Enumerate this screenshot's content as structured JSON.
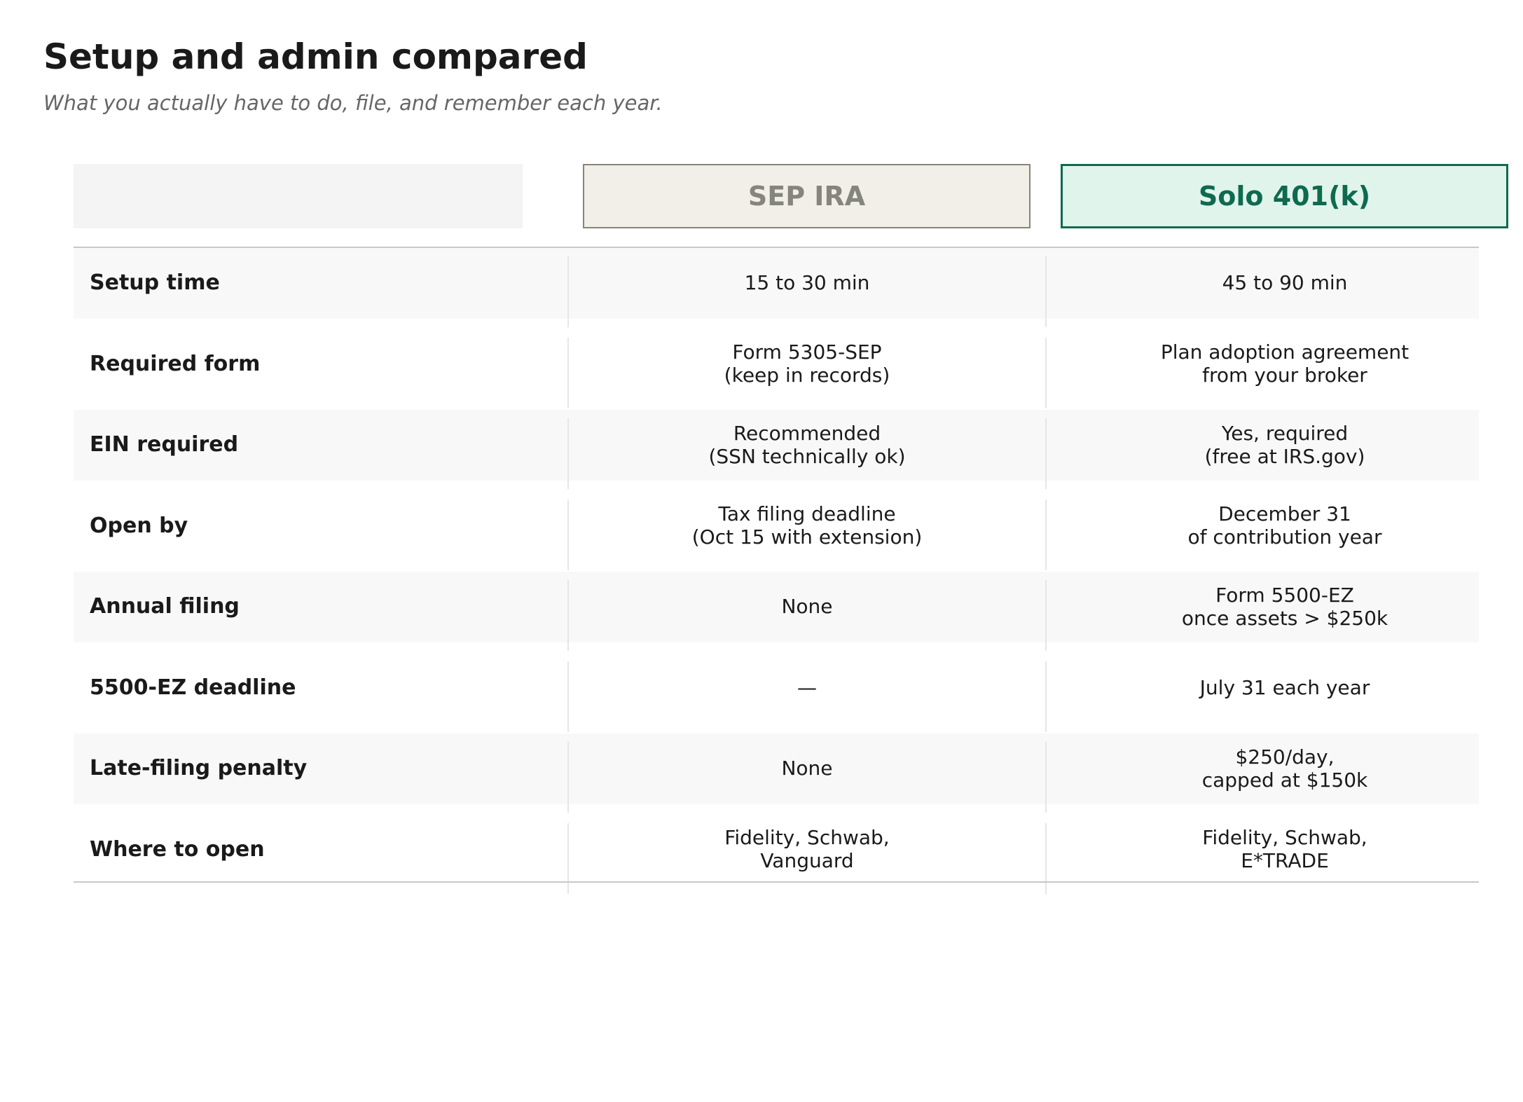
{
  "header": {
    "title": "Setup and admin compared",
    "subtitle": "What you actually have to do, file, and remember each year."
  },
  "table": {
    "columns": [
      "SEP IRA",
      "Solo 401(k)"
    ],
    "rows": [
      [
        "Setup time",
        "15 to 30 min",
        "45 to 90 min"
      ],
      [
        "Required form",
        "Form 5305-SEP\n(keep in records)",
        "Plan adoption agreement\nfrom your broker"
      ],
      [
        "EIN required",
        "Recommended\n(SSN technically ok)",
        "Yes, required\n(free at IRS.gov)"
      ],
      [
        "Open by",
        "Tax filing deadline\n(Oct 15 with extension)",
        "December 31\nof contribution year"
      ],
      [
        "Annual filing",
        "None",
        "Form 5500-EZ\nonce assets > $250k"
      ],
      [
        "5500-EZ deadline",
        "—",
        "July 31 each year"
      ],
      [
        "Late-filing penalty",
        "None",
        "$250/day,\ncapped at $150k"
      ],
      [
        "Where to open",
        "Fidelity, Schwab,\nVanguard",
        "Fidelity, Schwab,\nE*TRADE"
      ]
    ]
  }
}
